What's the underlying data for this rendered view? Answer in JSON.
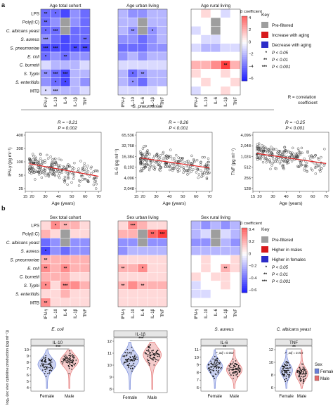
{
  "panel_a": {
    "label": "a",
    "heatmaps": {
      "titles": [
        "Age total cohort",
        "Age urban living",
        "Age rural living"
      ],
      "rows": [
        "LPS",
        "Poly(I:C)",
        "C. albicans yeast",
        "S. aureus",
        "S. pneumoniae",
        "E. coli",
        "C. burnetii",
        "S. Typhi",
        "S. enteritidis",
        "MTB"
      ],
      "cols": [
        "IFN-γ",
        "IL-10",
        "IL-6",
        "IL-1β",
        "TNF"
      ],
      "colorbar_title": "β coefficient",
      "colorbar_ticks": [
        "4",
        "2",
        "0",
        "−2",
        "−4",
        "−6"
      ],
      "values": [
        [
          [
            -4,
            -4,
            -5,
            -3,
            -4
          ],
          [
            -4,
            -3,
            "pre",
            -3,
            -4
          ],
          [
            -4,
            -4,
            "pre",
            -4,
            -4
          ],
          [
            -3,
            -4,
            -5,
            -4,
            -4
          ],
          [
            -5,
            -5,
            -5,
            -5,
            -5
          ],
          [
            -4,
            -3,
            -4,
            -3,
            -3
          ],
          [
            -1,
            -2,
            -2,
            -2,
            -1
          ],
          [
            -3,
            -4,
            -5,
            -2,
            -2
          ],
          [
            -3,
            -4,
            -5,
            -2,
            -3
          ],
          [
            -1,
            -2,
            -2,
            -2,
            -1
          ]
        ],
        [
          [
            -2,
            -3,
            -3,
            -2,
            -2
          ],
          [
            -2,
            -2,
            "pre",
            -2,
            -2
          ],
          [
            -2,
            -3,
            "pre",
            -3,
            -2
          ],
          [
            -3,
            -3,
            -4,
            -3,
            -2
          ],
          [
            -4,
            -4,
            -4,
            -3,
            -3
          ],
          [
            -3,
            -2,
            -3,
            -2,
            -2
          ],
          [
            -1,
            -1,
            -1,
            -1,
            -1
          ],
          [
            -2,
            -4,
            -3,
            -2,
            -2
          ],
          [
            -2,
            -3,
            -4,
            -2,
            -2
          ],
          [
            -1,
            -1,
            -1,
            -1,
            0
          ]
        ],
        [
          [
            0,
            1,
            0,
            -1,
            0
          ],
          [
            0,
            0,
            "pre",
            0,
            0
          ],
          [
            -1,
            0,
            "pre",
            0,
            0
          ],
          [
            0,
            -1,
            -1,
            0,
            0
          ],
          [
            -1,
            -2,
            -2,
            -1,
            -1
          ],
          [
            0,
            0,
            0,
            0,
            0
          ],
          [
            2,
            2,
            3,
            5,
            2
          ],
          [
            1,
            0,
            0,
            1,
            0
          ],
          [
            0,
            1,
            0,
            0,
            1
          ],
          [
            -1,
            0,
            0,
            1,
            0
          ]
        ]
      ],
      "stars": [
        [
          [
            "**",
            "*",
            "",
            "",
            ""
          ],
          [
            "**",
            "",
            "",
            "",
            ""
          ],
          [
            "*",
            "***",
            "",
            "",
            ""
          ],
          [
            "***",
            "",
            "",
            "",
            "**"
          ],
          [
            "***",
            "***",
            "",
            "**",
            "***"
          ],
          [
            "*",
            "",
            "**",
            "",
            ""
          ],
          [
            "",
            "",
            "",
            "",
            ""
          ],
          [
            "**",
            "***",
            "***",
            "",
            ""
          ],
          [
            "",
            "*",
            "*",
            "",
            ""
          ],
          [
            "*",
            "***",
            "",
            "",
            ""
          ]
        ],
        [
          [
            "",
            "",
            "",
            "",
            ""
          ],
          [
            "",
            "",
            "",
            "",
            ""
          ],
          [
            "",
            "**",
            "",
            "*",
            ""
          ],
          [
            "",
            "",
            "",
            "",
            ""
          ],
          [
            "",
            "",
            "",
            "",
            ""
          ],
          [
            "",
            "",
            "",
            "",
            ""
          ],
          [
            "",
            "",
            "",
            "",
            ""
          ],
          [
            "",
            "*",
            "**",
            "",
            ""
          ],
          [
            "",
            "*",
            "",
            "",
            ""
          ],
          [
            "",
            "",
            "",
            "",
            ""
          ]
        ],
        [
          [
            "",
            "",
            "",
            "",
            ""
          ],
          [
            "",
            "",
            "",
            "",
            ""
          ],
          [
            "",
            "",
            "",
            "",
            ""
          ],
          [
            "",
            "",
            "",
            "",
            ""
          ],
          [
            "",
            "",
            "",
            "",
            ""
          ],
          [
            "",
            "",
            "",
            "",
            ""
          ],
          [
            "",
            "",
            "",
            "**",
            ""
          ],
          [
            "",
            "",
            "",
            "",
            ""
          ],
          [
            "",
            "",
            "",
            "",
            ""
          ],
          [
            "",
            "",
            "",
            "",
            ""
          ]
        ]
      ]
    },
    "key": {
      "title": "Key",
      "items": [
        {
          "label": "Pre-filtered",
          "color": "#9e9e9e"
        },
        {
          "label": "Increase with aging",
          "color": "#d7191c"
        },
        {
          "label": "Decrease with aging",
          "color": "#2c2cc8"
        }
      ],
      "pvals": [
        {
          "sym": "*",
          "txt": "P < 0.05"
        },
        {
          "sym": "**",
          "txt": "P < 0.01"
        },
        {
          "sym": "***",
          "txt": "P < 0.001"
        }
      ]
    },
    "scatter": {
      "stimulus": "S. pneumoniae",
      "corr_note_line1": "R = correlation",
      "corr_note_line2": "coefficient",
      "xlabel": "Age (years)",
      "xticks": [
        "15",
        "20",
        "30",
        "40",
        "50",
        "60",
        "70"
      ],
      "xlim": [
        15,
        72
      ],
      "plots": [
        {
          "ylabel": "IFN-γ (pg ml⁻¹)",
          "yticks": [
            "400",
            "200",
            "100",
            "50",
            "25"
          ],
          "ylim_log2": [
            4.3,
            9.0
          ],
          "r_text": "R = −0.21",
          "p_text": "P = 0.002",
          "trend": [
            [
              18,
              6.5
            ],
            [
              70,
              5.5
            ]
          ]
        },
        {
          "ylabel": "IL-6 (pg ml⁻¹)",
          "yticks": [
            "65,536",
            "32,768",
            "16,384",
            "8,192",
            "4,096",
            "2,048"
          ],
          "ylim_log2": [
            10.9,
            16.2
          ],
          "r_text": "R = −0.26",
          "p_text": "P < 0.001",
          "trend": [
            [
              18,
              13.9
            ],
            [
              70,
              13.0
            ]
          ]
        },
        {
          "ylabel": "TNF (pg ml⁻¹)",
          "yticks": [
            "4,096",
            "2,048",
            "1,024",
            "512",
            "256",
            "128"
          ],
          "ylim_log2": [
            6.9,
            12.2
          ],
          "r_text": "R = −0.25",
          "p_text": "P < 0.001",
          "trend": [
            [
              18,
              10.3
            ],
            [
              70,
              9.4
            ]
          ]
        }
      ]
    }
  },
  "panel_b": {
    "label": "b",
    "heatmaps": {
      "titles": [
        "Sex total cohort",
        "Sex urban living",
        "Sex rural living"
      ],
      "rows": [
        "LPS",
        "Poly(I:C)",
        "C. albicans yeast",
        "S. aureus",
        "S. pneumoniae",
        "E. coli",
        "C. burnetii",
        "S. Typhi",
        "S. enteritidis",
        "MTB"
      ],
      "cols": [
        "IFN-γ",
        "IL-10",
        "IL-6",
        "IL-1β",
        "TNF"
      ],
      "colorbar_title": "β coefficient",
      "colorbar_ticks": [
        "0.4",
        "0.2",
        "0",
        "−0.2",
        "−0.4",
        "−0.6"
      ],
      "values": [
        [
          [
            1,
            3,
            2,
            2,
            1
          ],
          [
            2,
            1,
            "pre",
            1,
            1
          ],
          [
            -4,
            -3,
            "pre",
            -3,
            -3
          ],
          [
            -5,
            -3,
            -4,
            -3,
            -3
          ],
          [
            2,
            2,
            2,
            2,
            2
          ],
          [
            3,
            2,
            3,
            2,
            2
          ],
          [
            2,
            2,
            2,
            1,
            1
          ],
          [
            3,
            1,
            3,
            3,
            2
          ],
          [
            1,
            1,
            2,
            1,
            1
          ],
          [
            3,
            1,
            1,
            1,
            1
          ]
        ],
        [
          [
            1,
            3,
            2,
            1,
            1
          ],
          [
            2,
            2,
            "pre",
            4,
            5
          ],
          [
            -3,
            -3,
            "pre",
            -3,
            -3
          ],
          [
            -3,
            -2,
            -2,
            -2,
            -2
          ],
          [
            1,
            1,
            1,
            1,
            1
          ],
          [
            2,
            2,
            3,
            1,
            1
          ],
          [
            1,
            1,
            1,
            1,
            1
          ],
          [
            2,
            3,
            2,
            2,
            2
          ],
          [
            1,
            1,
            1,
            1,
            1
          ],
          [
            1,
            1,
            1,
            1,
            1
          ]
        ],
        [
          [
            -2,
            -3,
            -2,
            -3,
            -2
          ],
          [
            -2,
            -1,
            "pre",
            -1,
            -2
          ],
          [
            -3,
            -3,
            "pre",
            -2,
            -3
          ],
          [
            -2,
            -2,
            -2,
            -2,
            -2
          ],
          [
            0,
            1,
            0,
            0,
            1
          ],
          [
            0,
            1,
            0,
            2,
            1
          ],
          [
            1,
            0,
            1,
            1,
            0
          ],
          [
            -1,
            0,
            0,
            1,
            0
          ],
          [
            -1,
            -1,
            0,
            0,
            0
          ],
          [
            0,
            0,
            0,
            0,
            0
          ]
        ]
      ],
      "stars": [
        [
          [
            "",
            "*",
            "**",
            "",
            ""
          ],
          [
            "",
            "",
            "",
            "",
            ""
          ],
          [
            "",
            "",
            "",
            "",
            ""
          ],
          [
            "*",
            "",
            "",
            "",
            ""
          ],
          [
            "**",
            "",
            "",
            "",
            ""
          ],
          [
            "**",
            "",
            "**",
            "",
            ""
          ],
          [
            "",
            "",
            "",
            "",
            ""
          ],
          [
            "*",
            "",
            "***",
            "",
            ""
          ],
          [
            "",
            "",
            "",
            "",
            ""
          ],
          [
            "**",
            "",
            "",
            "",
            ""
          ]
        ],
        [
          [
            "",
            "***",
            "",
            "",
            ""
          ],
          [
            "",
            "",
            "",
            "**",
            "***"
          ],
          [
            "",
            "",
            "",
            "",
            ""
          ],
          [
            "",
            "",
            "",
            "",
            ""
          ],
          [
            "",
            "",
            "",
            "",
            ""
          ],
          [
            "**",
            "",
            "*",
            "",
            ""
          ],
          [
            "",
            "",
            "",
            "",
            ""
          ],
          [
            "**",
            "",
            "**",
            "",
            ""
          ],
          [
            "",
            "",
            "",
            "",
            ""
          ],
          [
            "",
            "",
            "",
            "",
            ""
          ]
        ],
        [
          [
            "",
            "",
            "",
            "",
            ""
          ],
          [
            "",
            "",
            "",
            "",
            ""
          ],
          [
            "",
            "",
            "",
            "",
            ""
          ],
          [
            "",
            "",
            "",
            "",
            ""
          ],
          [
            "",
            "",
            "",
            "",
            ""
          ],
          [
            "",
            "",
            "",
            "**",
            ""
          ],
          [
            "",
            "",
            "",
            "",
            ""
          ],
          [
            "",
            "",
            "",
            "",
            ""
          ],
          [
            "",
            "",
            "",
            "",
            ""
          ],
          [
            "",
            "",
            "",
            "",
            ""
          ]
        ]
      ]
    },
    "key": {
      "title": "Key",
      "items": [
        {
          "label": "Pre-filtered",
          "color": "#9e9e9e"
        },
        {
          "label": "Higher in males",
          "color": "#d7191c"
        },
        {
          "label": "Higher in females",
          "color": "#2c2cc8"
        }
      ],
      "pvals": [
        {
          "sym": "*",
          "txt": "P < 0.05"
        },
        {
          "sym": "**",
          "txt": "P < 0.01"
        },
        {
          "sym": "***",
          "txt": "P < 0.001"
        }
      ]
    },
    "violins": {
      "ylabel": "log₂ (ex vivo cytokine production (pg ml⁻¹))",
      "groups": [
        "Female",
        "Male"
      ],
      "legend_title": "Sex",
      "legend": [
        {
          "label": "Female",
          "color": "#6b7fd7"
        },
        {
          "label": "Male",
          "color": "#e36a6a"
        }
      ],
      "plots": [
        {
          "stimulus": "E. coli",
          "cytokine": "IL-10",
          "sig": "***",
          "yticks": [
            "10",
            "9",
            "8",
            "7",
            "6",
            "5",
            "4"
          ],
          "ylim": [
            4,
            10.4
          ],
          "medians": [
            7.8,
            8.3
          ]
        },
        {
          "stimulus": "",
          "cytokine": "IL-1β",
          "sig": "***",
          "yticks": [
            "12",
            "11",
            "10",
            "9",
            "8"
          ],
          "ylim": [
            7.6,
            12.4
          ],
          "medians": [
            10.5,
            10.9
          ]
        },
        {
          "stimulus": "S. aureus",
          "cytokine": "IL-6",
          "sig": "**",
          "padj": "P_adj = 0.002",
          "yticks": [
            "11",
            "10",
            "9",
            "8",
            "7",
            "6"
          ],
          "ylim": [
            5.5,
            11.6
          ],
          "medians": [
            8.8,
            8.4
          ]
        },
        {
          "stimulus": "C. albicans yeast",
          "cytokine": "TNF",
          "sig": "**",
          "padj": "P_adj = 0.004",
          "yticks": [
            "12",
            "10",
            "8",
            "6"
          ],
          "ylim": [
            5,
            12.8
          ],
          "medians": [
            8.6,
            8.0
          ]
        }
      ]
    }
  }
}
